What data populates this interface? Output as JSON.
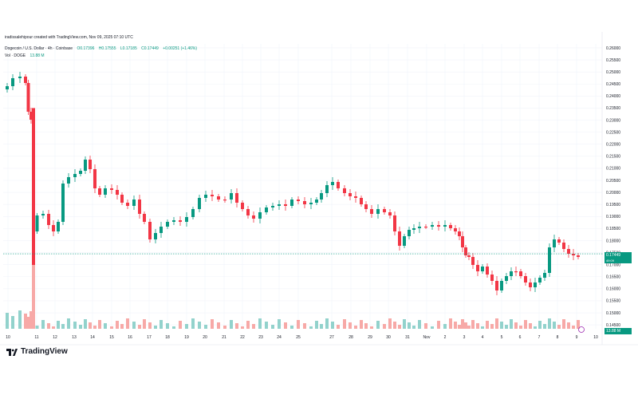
{
  "header": {
    "author_line": "iradissalehipour created with TradingView.com, Nov 09, 2025 07:10 UTC",
    "symbol": "Dogecoin / U.S. Dollar · 4h · Coinbase",
    "o": "O0.17396",
    "h": "H0.17555",
    "l": "L0.17185",
    "c": "C0.17449",
    "change": "+0.00251 (+1.46%)",
    "vol_label": "Vol · DOGE",
    "vol_value": "13.88 M"
  },
  "price_tag": "0.17449",
  "price_tag_sub": "49:09",
  "vol_tag": "13.88 M",
  "logo_text": "TradingView",
  "chart_data": {
    "type": "candlestick",
    "x_ticks": [
      "10",
      "11",
      "12",
      "13",
      "14",
      "15",
      "16",
      "17",
      "18",
      "19",
      "20",
      "21",
      "22",
      "23",
      "24",
      "25",
      "27",
      "28",
      "29",
      "30",
      "31",
      "Nov",
      "2",
      "3",
      "4",
      "5",
      "6",
      "7",
      "8",
      "9",
      "10"
    ],
    "y_ticks": [
      0.145,
      0.15,
      0.155,
      0.16,
      0.165,
      0.17,
      0.175,
      0.18,
      0.185,
      0.19,
      0.195,
      0.2,
      0.205,
      0.21,
      0.215,
      0.22,
      0.225,
      0.23,
      0.235,
      0.24,
      0.245,
      0.25,
      0.255,
      0.26
    ],
    "ylim": [
      0.14338,
      0.26165
    ],
    "last_price": 0.17449,
    "colors": {
      "up": "#089981",
      "down": "#f23645",
      "vol_up": "#92d2cc",
      "vol_down": "#f7a9a7",
      "grid": "#f0f3fa",
      "text": "#131722"
    },
    "grid": true
  }
}
